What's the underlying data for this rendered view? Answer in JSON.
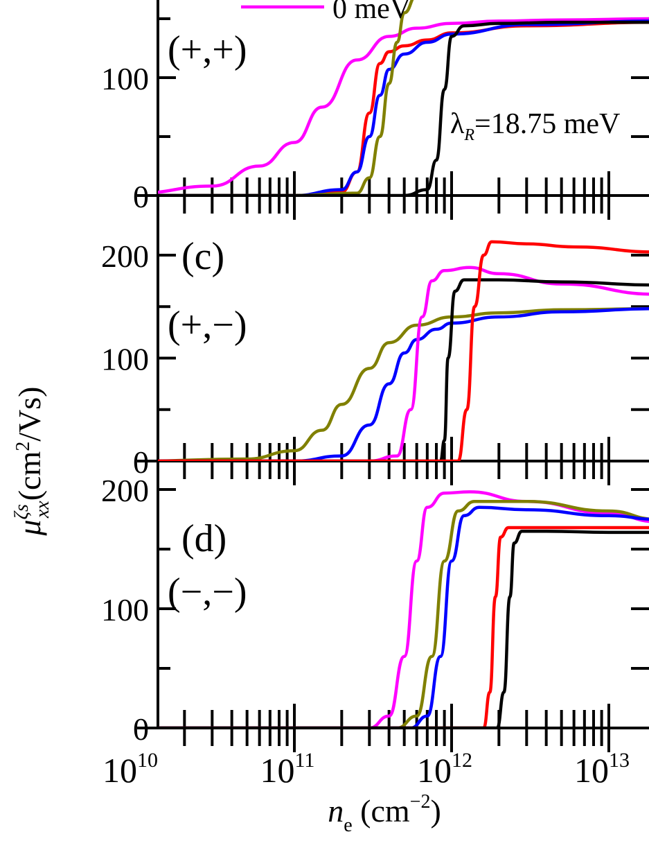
{
  "chart_data": [
    {
      "type": "line",
      "panel_label": "",
      "spin_label": "(+,+)",
      "xscale": "log",
      "xlim": [
        10000000000.0,
        20000000000000.0
      ],
      "ylim": [
        0,
        165
      ],
      "yticks": [
        0,
        100
      ],
      "ytick_labels": [
        "0",
        "100"
      ],
      "legend_entries": [
        {
          "label": "0 meV",
          "color": "#ff00ff"
        }
      ],
      "annotation": {
        "symbol": "λ",
        "subscript": "R",
        "text": "=18.75 meV"
      },
      "series": [
        {
          "color": "#ff00ff",
          "x": [
            "1e10",
            "3e10",
            "6e10",
            "1e11",
            "1.5e11",
            "2.5e11",
            "4e11",
            "6e11",
            "1e12",
            "2e12",
            "5e12",
            "2e13"
          ],
          "values": [
            2,
            8,
            25,
            45,
            75,
            115,
            135,
            142,
            146,
            148,
            149,
            150
          ]
        },
        {
          "color": "#ff0000",
          "x": [
            "1e10",
            "1e11",
            "2e11",
            "2.5e11",
            "3e11",
            "3.5e11",
            "4e11",
            "5e11",
            "7e11",
            "1e12",
            "3e12",
            "2e13"
          ],
          "values": [
            0,
            0,
            3,
            20,
            70,
            112,
            122,
            127,
            132,
            138,
            144,
            147
          ]
        },
        {
          "color": "#0000ff",
          "x": [
            "1e10",
            "1e11",
            "2e11",
            "2.5e11",
            "3e11",
            "3.5e11",
            "4e11",
            "5e11",
            "7e11",
            "1e12",
            "3e12",
            "2e13"
          ],
          "values": [
            0,
            0,
            5,
            20,
            50,
            85,
            107,
            120,
            130,
            137,
            145,
            148
          ]
        },
        {
          "color": "#808000",
          "x": [
            "1e10",
            "1e11",
            "2.5e11",
            "3e11",
            "3.5e11",
            "4e11",
            "4.5e11",
            "5e11",
            "6e11",
            "2e13"
          ],
          "values": [
            0,
            0,
            2,
            15,
            50,
            95,
            130,
            155,
            170,
            170
          ]
        },
        {
          "color": "#000000",
          "x": [
            "1e10",
            "5e11",
            "7e11",
            "8e11",
            "9e11",
            "1e12",
            "1.2e12",
            "2e12",
            "5e12",
            "2e13"
          ],
          "values": [
            0,
            0,
            5,
            30,
            90,
            135,
            144,
            146,
            147,
            147
          ]
        }
      ]
    },
    {
      "type": "line",
      "panel_label": "(c)",
      "spin_label": "(+,−)",
      "xscale": "log",
      "xlim": [
        10000000000.0,
        20000000000000.0
      ],
      "ylim": [
        0,
        215
      ],
      "yticks": [
        0,
        100,
        200
      ],
      "ytick_labels": [
        "0",
        "100",
        "200"
      ],
      "series": [
        {
          "color": "#808000",
          "x": [
            "1e10",
            "5e10",
            "1e11",
            "1.5e11",
            "2e11",
            "3e11",
            "4e11",
            "6e11",
            "1e12",
            "2e12",
            "5e12",
            "2e13"
          ],
          "values": [
            0,
            2,
            10,
            30,
            55,
            90,
            115,
            132,
            140,
            144,
            147,
            148
          ]
        },
        {
          "color": "#0000ff",
          "x": [
            "1e10",
            "1e11",
            "2e11",
            "3e11",
            "4e11",
            "5e11",
            "6e11",
            "8e11",
            "1e12",
            "2e12",
            "5e12",
            "2e13"
          ],
          "values": [
            0,
            0,
            5,
            35,
            75,
            105,
            118,
            128,
            134,
            140,
            145,
            148
          ]
        },
        {
          "color": "#ff00ff",
          "x": [
            "1e10",
            "3e11",
            "4.5e11",
            "5.5e11",
            "6.5e11",
            "7.5e11",
            "9e11",
            "1.3e12",
            "2e12",
            "5e12",
            "2e13"
          ],
          "values": [
            0,
            0,
            5,
            50,
            140,
            175,
            185,
            188,
            182,
            172,
            162
          ]
        },
        {
          "color": "#000000",
          "x": [
            "1e10",
            "8.5e11",
            "9e11",
            "9.5e11",
            "1.05e12",
            "1.2e12",
            "2e12",
            "5e12",
            "2e13"
          ],
          "values": [
            0,
            0,
            20,
            100,
            165,
            176,
            176,
            174,
            171
          ]
        },
        {
          "color": "#ff0000",
          "x": [
            "1e10",
            "1.1e12",
            "1.25e12",
            "1.4e12",
            "1.6e12",
            "1.8e12",
            "3e12",
            "6e12",
            "2e13"
          ],
          "values": [
            0,
            0,
            50,
            150,
            200,
            213,
            211,
            208,
            203
          ]
        }
      ]
    },
    {
      "type": "line",
      "panel_label": "(d)",
      "spin_label": "(−,−)",
      "xscale": "log",
      "xlim": [
        10000000000.0,
        20000000000000.0
      ],
      "xticks": [
        10000000000.0,
        100000000000.0,
        1000000000000.0,
        10000000000000.0
      ],
      "xtick_labels": [
        {
          "base": "10",
          "exp": "10"
        },
        {
          "base": "10",
          "exp": "11"
        },
        {
          "base": "10",
          "exp": "12"
        },
        {
          "base": "10",
          "exp": "13"
        }
      ],
      "ylim": [
        0,
        210
      ],
      "yticks": [
        0,
        100,
        200
      ],
      "ytick_labels": [
        "0",
        "100",
        "200"
      ],
      "series": [
        {
          "color": "#ff00ff",
          "x": [
            "1e10",
            "3e11",
            "4e11",
            "5e11",
            "6e11",
            "7e11",
            "9e11",
            "1.3e12",
            "3e12",
            "1e13",
            "2e13"
          ],
          "values": [
            0,
            0,
            10,
            60,
            140,
            185,
            197,
            198,
            190,
            180,
            173
          ]
        },
        {
          "color": "#808000",
          "x": [
            "1e10",
            "4.5e11",
            "6e11",
            "7.5e11",
            "9e11",
            "1.1e12",
            "1.4e12",
            "3e12",
            "1e13",
            "2e13"
          ],
          "values": [
            0,
            0,
            10,
            60,
            140,
            182,
            190,
            190,
            182,
            175
          ]
        },
        {
          "color": "#0000ff",
          "x": [
            "1e10",
            "5.5e11",
            "7e11",
            "8.5e11",
            "1e12",
            "1.2e12",
            "1.5e12",
            "3e12",
            "1e13",
            "2e13"
          ],
          "values": [
            0,
            0,
            10,
            60,
            140,
            178,
            185,
            183,
            178,
            175
          ]
        },
        {
          "color": "#ff0000",
          "x": [
            "1e10",
            "1.6e12",
            "1.75e12",
            "1.9e12",
            "2.05e12",
            "2.3e12",
            "3e12",
            "1e13",
            "2e13"
          ],
          "values": [
            0,
            0,
            30,
            110,
            160,
            168,
            168,
            168,
            168
          ]
        },
        {
          "color": "#000000",
          "x": [
            "1e10",
            "1.95e12",
            "2.15e12",
            "2.35e12",
            "2.5e12",
            "2.8e12",
            "4e12",
            "1e13",
            "2e13"
          ],
          "values": [
            0,
            0,
            30,
            110,
            155,
            165,
            165,
            164,
            164
          ]
        }
      ]
    }
  ],
  "axes": {
    "xlabel": {
      "symbol": "n",
      "subscript": "e",
      "unit": " (cm",
      "unit_exp": "−2",
      "close": ")"
    },
    "ylabel": {
      "symbol": "μ",
      "sup": "ζs",
      "sub": "xx",
      "unit": "(cm",
      "unit_exp": "2",
      "close": "/Vs)"
    }
  }
}
